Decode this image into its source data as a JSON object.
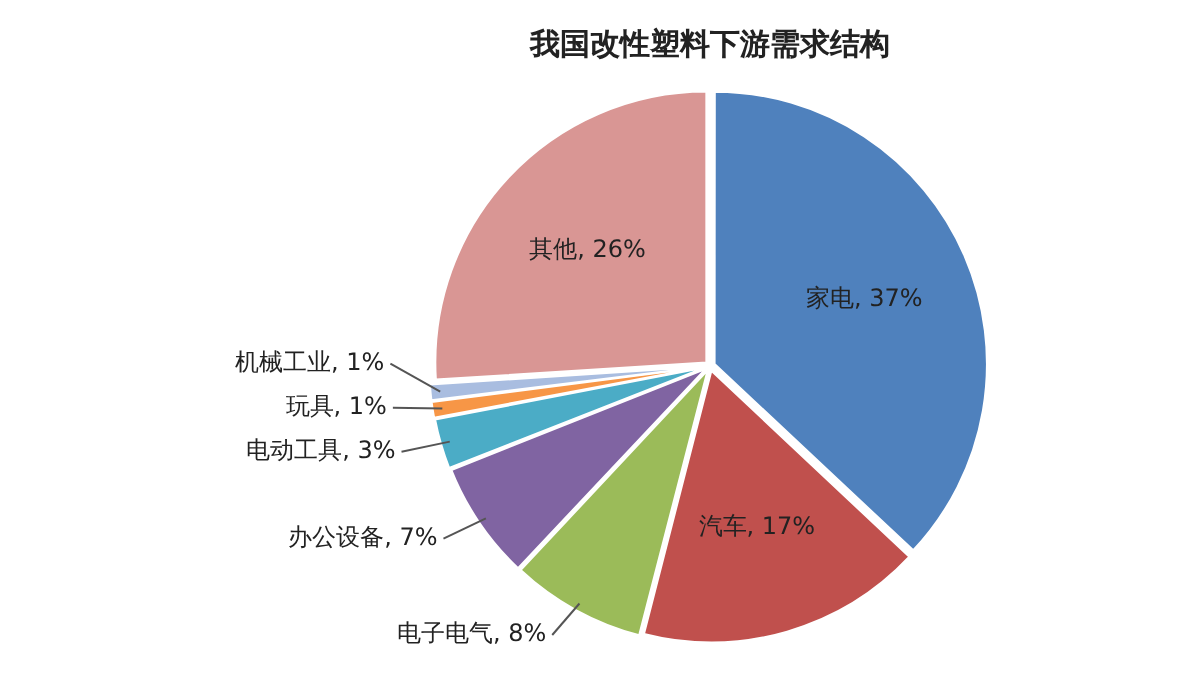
{
  "chart_data": {
    "type": "pie",
    "title": "我国改性塑料下游需求结构",
    "categories": [
      "家电",
      "汽车",
      "电子电气",
      "办公设备",
      "电动工具",
      "玩具",
      "机械工业",
      "其他"
    ],
    "values": [
      37,
      17,
      8,
      7,
      3,
      1,
      1,
      26
    ],
    "colors": [
      "#4f81bd",
      "#c0504d",
      "#9bbb59",
      "#8064a2",
      "#4bacc6",
      "#f79646",
      "#a9bde0",
      "#d99694"
    ],
    "value_labels": [
      "37%",
      "17%",
      "8%",
      "7%",
      "3%",
      "1%",
      "1%",
      "26%"
    ]
  }
}
